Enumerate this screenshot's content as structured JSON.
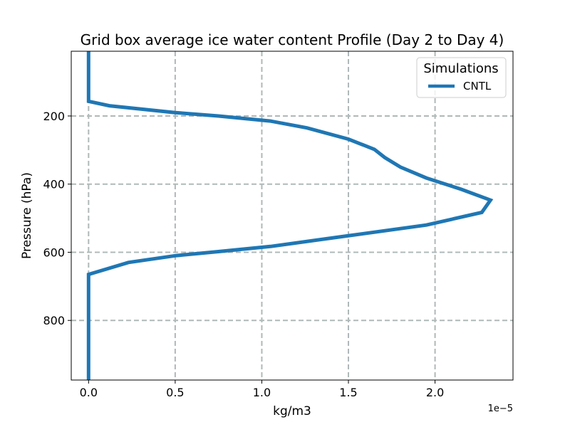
{
  "chart_data": {
    "type": "line",
    "title": "Grid box average ice water content Profile (Day 2 to Day 4)",
    "xlabel": "kg/m3",
    "ylabel": "Pressure (hPa)",
    "x_offset_label": "1e−5",
    "xlim": [
      -0.1,
      2.45
    ],
    "ylim": [
      975,
      10
    ],
    "y_inverted": true,
    "x_ticks": [
      0.0,
      0.5,
      1.0,
      1.5,
      2.0
    ],
    "x_tick_labels": [
      "0.0",
      "0.5",
      "1.0",
      "1.5",
      "2.0"
    ],
    "y_ticks": [
      200,
      400,
      600,
      800
    ],
    "y_tick_labels": [
      "200",
      "400",
      "600",
      "800"
    ],
    "grid": true,
    "legend": {
      "title": "Simulations",
      "position": "top-right"
    },
    "series": [
      {
        "name": "CNTL",
        "color": "#1f77b4",
        "x": [
          0.0,
          0.0,
          0.0,
          0.12,
          0.5,
          0.75,
          1.05,
          1.26,
          1.5,
          1.65,
          1.71,
          1.8,
          1.95,
          2.15,
          2.32,
          2.27,
          1.95,
          1.45,
          1.05,
          0.75,
          0.5,
          0.23,
          0.0,
          0.0
        ],
        "y": [
          10,
          100,
          157,
          170,
          190,
          200,
          215,
          235,
          268,
          298,
          322,
          350,
          382,
          415,
          447,
          483,
          520,
          555,
          583,
          598,
          610,
          630,
          665,
          975
        ]
      }
    ]
  }
}
